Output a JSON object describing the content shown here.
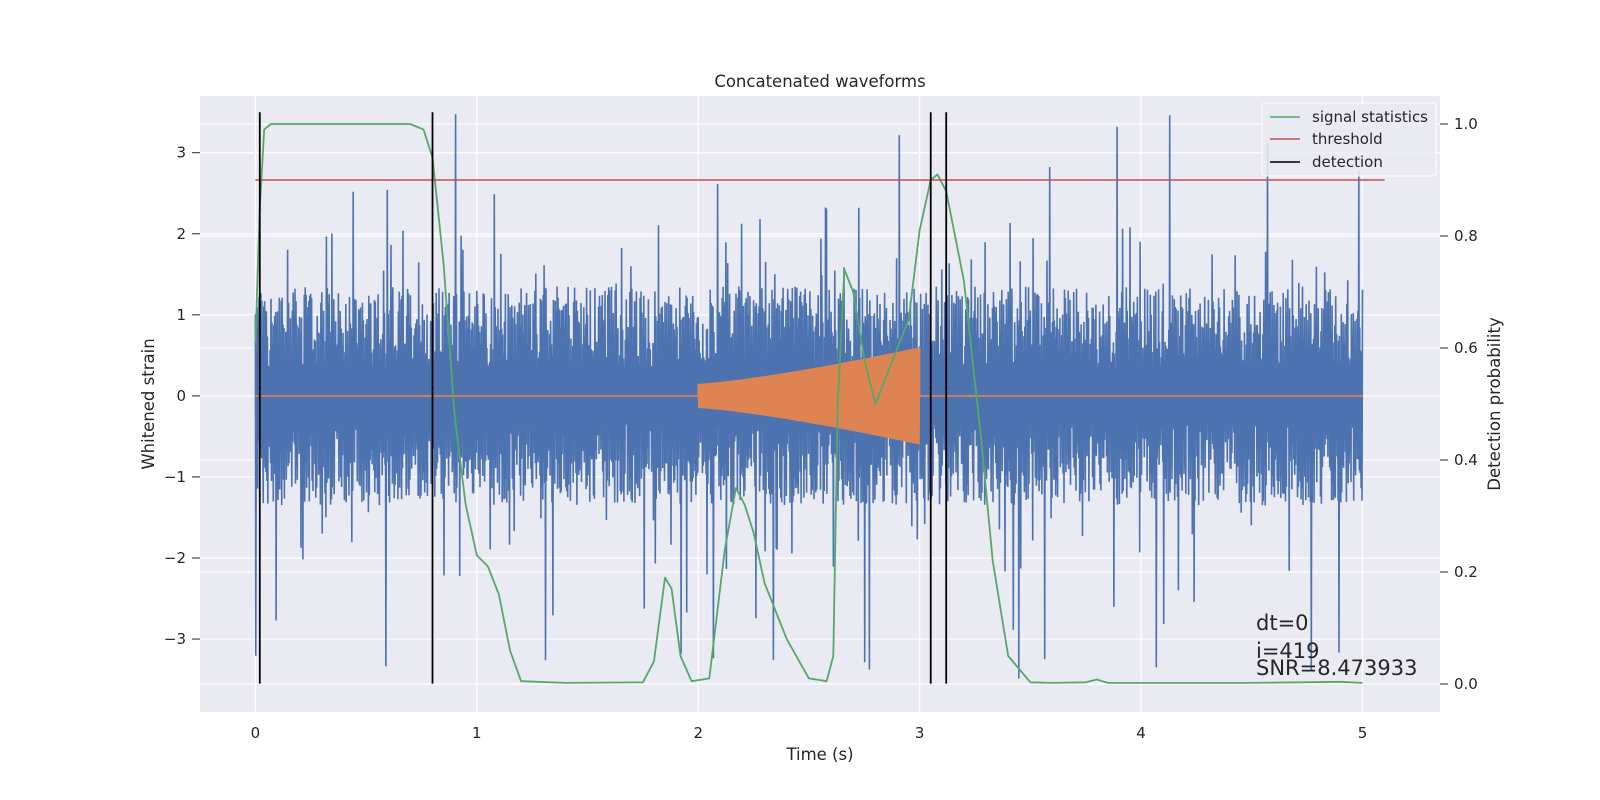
{
  "chart_data": {
    "type": "line",
    "title": "Concatenated waveforms",
    "xlabel": "Time (s)",
    "ylabel": "Whitened strain",
    "y2label": "Detection probability",
    "xlim": [
      -0.25,
      5.35
    ],
    "ylim": [
      -3.9,
      3.7
    ],
    "y2lim": [
      -0.05,
      1.05
    ],
    "x_ticks": [
      "0",
      "1",
      "2",
      "3",
      "4",
      "5"
    ],
    "y_ticks": [
      "−3",
      "−2",
      "−1",
      "0",
      "1",
      "2",
      "3"
    ],
    "y2_ticks": [
      "0.0",
      "0.2",
      "0.4",
      "0.6",
      "0.8",
      "1.0"
    ],
    "grid": true,
    "legend_position": "top-right",
    "legend": [
      {
        "label": "signal statistics",
        "color": "#55a868"
      },
      {
        "label": "threshold",
        "color": "#c44e52"
      },
      {
        "label": "detection",
        "color": "#000000"
      }
    ],
    "series": [
      {
        "id": "strain",
        "axis": "left",
        "color": "#4c72b0",
        "x_range": [
          0,
          5
        ],
        "amplitude_envelope": [
          -3.6,
          3.5
        ],
        "description_values": "noise"
      },
      {
        "id": "waveform",
        "axis": "left",
        "color": "#dd8452",
        "x_range": [
          2.0,
          3.0
        ],
        "amplitude_start": 0.15,
        "amplitude_end": 0.6
      },
      {
        "id": "signal_statistics",
        "axis": "right",
        "name": "signal statistics",
        "color": "#55a868",
        "x": [
          0.0,
          0.02,
          0.04,
          0.07,
          0.1,
          0.2,
          0.7,
          0.76,
          0.8,
          0.85,
          0.9,
          0.95,
          1.0,
          1.05,
          1.1,
          1.15,
          1.2,
          1.4,
          1.75,
          1.8,
          1.85,
          1.88,
          1.92,
          1.97,
          2.05,
          2.12,
          2.17,
          2.21,
          2.25,
          2.3,
          2.4,
          2.5,
          2.58,
          2.61,
          2.63,
          2.66,
          2.7,
          2.75,
          2.8,
          2.85,
          2.9,
          2.95,
          3.0,
          3.05,
          3.08,
          3.12,
          3.2,
          3.28,
          3.33,
          3.4,
          3.5,
          3.6,
          3.75,
          3.8,
          3.85,
          4.0,
          4.5,
          4.9,
          5.0
        ],
        "y": [
          0.61,
          0.85,
          0.99,
          1.0,
          1.0,
          1.0,
          1.0,
          0.99,
          0.94,
          0.75,
          0.48,
          0.32,
          0.23,
          0.21,
          0.16,
          0.06,
          0.005,
          0.002,
          0.003,
          0.04,
          0.19,
          0.17,
          0.05,
          0.005,
          0.01,
          0.24,
          0.35,
          0.32,
          0.27,
          0.18,
          0.08,
          0.01,
          0.005,
          0.05,
          0.5,
          0.74,
          0.7,
          0.58,
          0.5,
          0.55,
          0.6,
          0.65,
          0.81,
          0.9,
          0.91,
          0.88,
          0.72,
          0.43,
          0.22,
          0.05,
          0.003,
          0.002,
          0.003,
          0.008,
          0.002,
          0.002,
          0.002,
          0.004,
          0.002
        ]
      },
      {
        "id": "threshold",
        "axis": "right",
        "name": "threshold",
        "color": "#c44e52",
        "x": [
          0.0,
          5.1
        ],
        "y": [
          0.9,
          0.9
        ]
      },
      {
        "id": "detection",
        "axis": "left",
        "name": "detection",
        "color": "#000000",
        "x_positions": [
          0.02,
          0.8,
          3.05,
          3.12
        ],
        "y_range": [
          -3.55,
          3.5
        ]
      }
    ],
    "annotations": [
      "dt=0",
      "i=419",
      "SNR=8.473933"
    ]
  }
}
